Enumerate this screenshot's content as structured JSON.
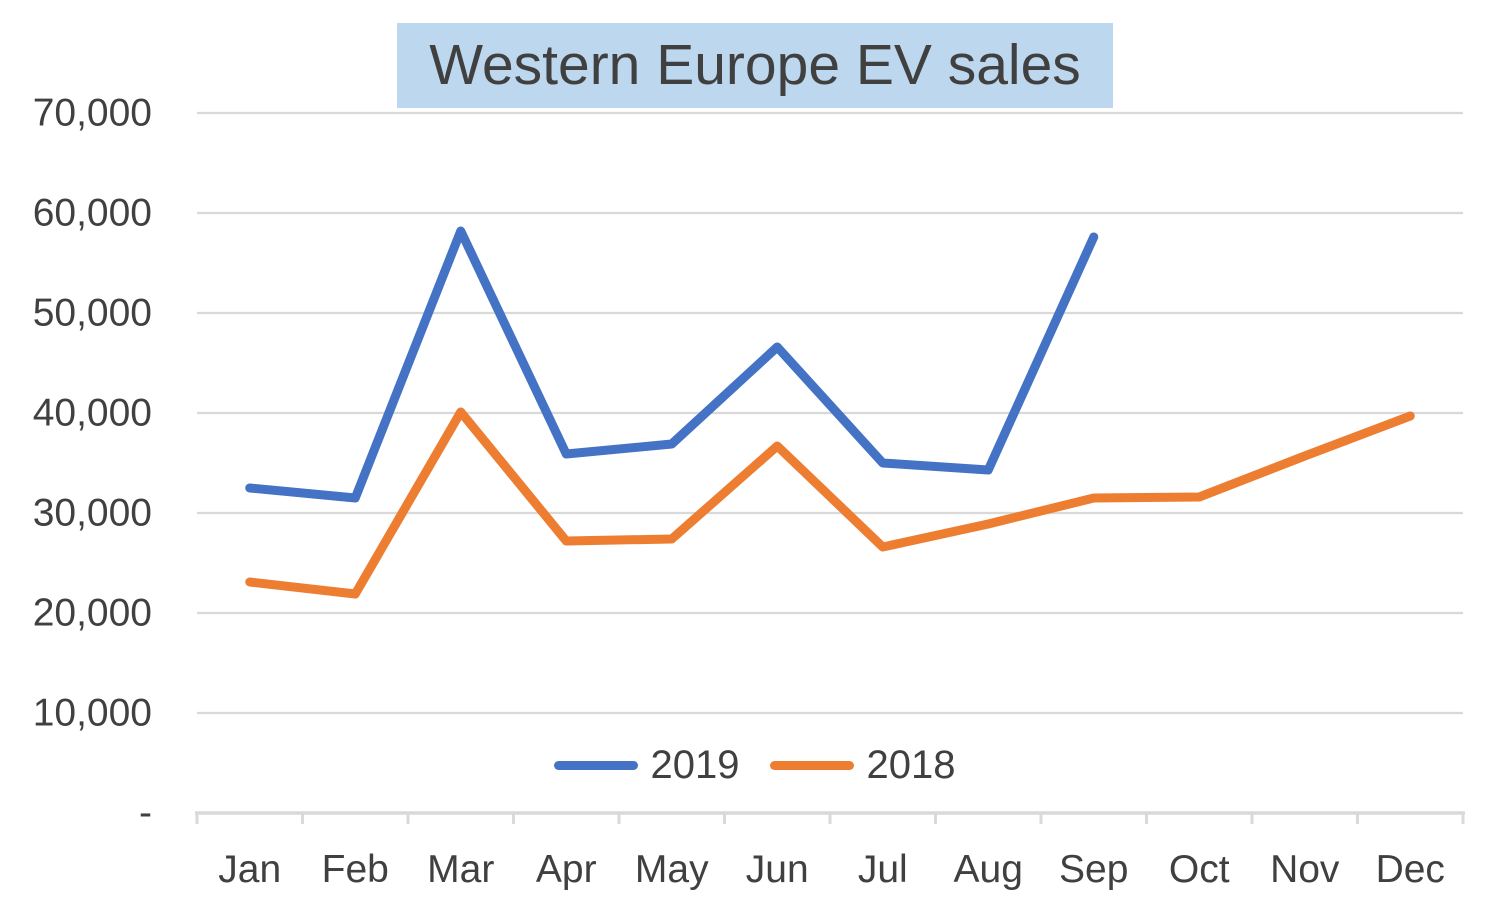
{
  "title": "Western Europe EV sales",
  "colors": {
    "title_background": "#BDD7EE",
    "text": "#404040",
    "gridline": "#D9D9D9",
    "axis": "#D9D9D9",
    "series_2019": "#4472C4",
    "series_2018": "#ED7D31"
  },
  "chart_data": {
    "type": "line",
    "title": "Western Europe EV sales",
    "categories": [
      "Jan",
      "Feb",
      "Mar",
      "Apr",
      "May",
      "Jun",
      "Jul",
      "Aug",
      "Sep",
      "Oct",
      "Nov",
      "Dec"
    ],
    "series": [
      {
        "name": "2019",
        "color": "#4472C4",
        "values": [
          32500,
          31500,
          58200,
          35900,
          36900,
          46600,
          35000,
          34300,
          57600,
          null,
          null,
          null
        ]
      },
      {
        "name": "2018",
        "color": "#ED7D31",
        "values": [
          23100,
          21900,
          40100,
          27200,
          27400,
          36700,
          26600,
          28900,
          31500,
          31600,
          35700,
          39700
        ]
      }
    ],
    "y_axis": {
      "min": 0,
      "max": 70000,
      "step": 10000,
      "tick_labels": [
        "-",
        "10,000",
        "20,000",
        "30,000",
        "40,000",
        "50,000",
        "60,000",
        "70,000"
      ]
    },
    "x_axis": {
      "label": "",
      "tick_labels": [
        "Jan",
        "Feb",
        "Mar",
        "Apr",
        "May",
        "Jun",
        "Jul",
        "Aug",
        "Sep",
        "Oct",
        "Nov",
        "Dec"
      ]
    },
    "legend": {
      "position": "bottom-center-inside",
      "entries": [
        "2019",
        "2018"
      ]
    },
    "grid": true,
    "ylim": [
      0,
      70000
    ]
  }
}
